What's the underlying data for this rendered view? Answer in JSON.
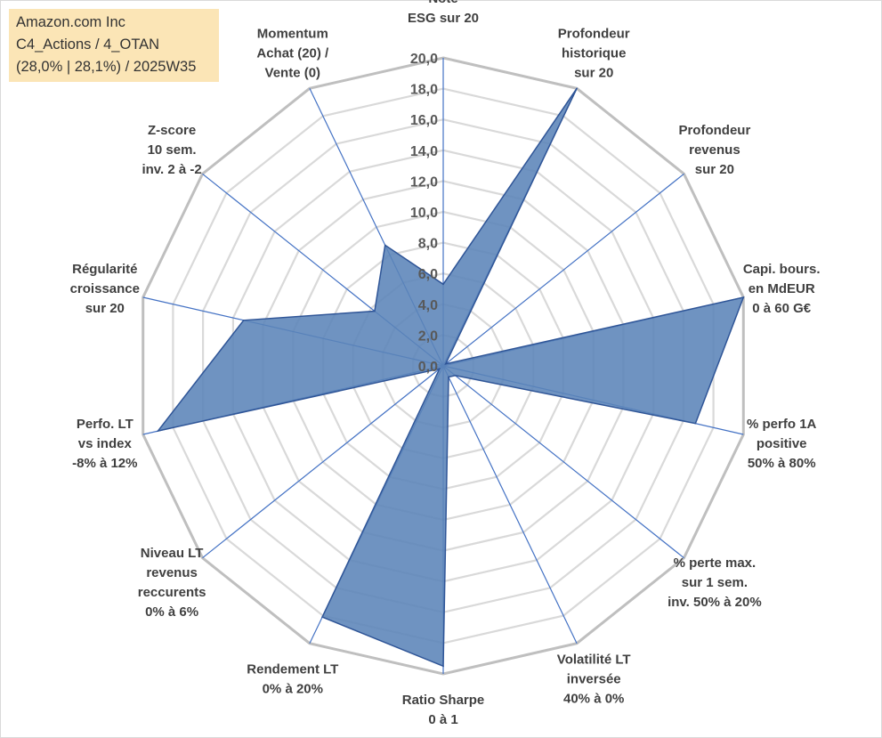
{
  "header": {
    "line1": "Amazon.com Inc",
    "line2": "C4_Actions / 4_OTAN",
    "line3": "(28,0% | 28,1%) / 2025W35"
  },
  "chart_data": {
    "type": "radar",
    "title": "",
    "rmin": 0,
    "rmax": 20,
    "tick_step": 2,
    "tick_labels": [
      "0,0",
      "2,0",
      "4,0",
      "6,0",
      "8,0",
      "10,0",
      "12,0",
      "14,0",
      "16,0",
      "18,0",
      "20,0"
    ],
    "axes": [
      [
        "Note",
        "ESG sur 20"
      ],
      [
        "Profondeur",
        "historique",
        "sur 20"
      ],
      [
        "Profondeur",
        "revenus",
        "sur 20"
      ],
      [
        "Capi. bours.",
        "en MdEUR",
        "0 à 60 G€"
      ],
      [
        "% perfo 1A",
        "positive",
        "50% à 80%"
      ],
      [
        "% perte max.",
        "sur 1 sem.",
        "inv. 50% à 20%"
      ],
      [
        "Volatilité LT",
        "inversée",
        "40% à 0%"
      ],
      [
        "Ratio Sharpe",
        "0 à 1"
      ],
      [
        "Rendement LT",
        "0% à 20%"
      ],
      [
        "Niveau LT",
        "revenus",
        "reccurents",
        "0% à 6%"
      ],
      [
        "Perfo. LT",
        "vs index",
        "-8% à 12%"
      ],
      [
        "Régularité",
        "croissance",
        "sur 20"
      ],
      [
        "Z-score",
        "10 sem.",
        "inv. 2 à -2"
      ],
      [
        "Momentum",
        "Achat (20) /",
        "Vente (0)"
      ]
    ],
    "series": [
      {
        "values": [
          5.3,
          20.0,
          0.2,
          20.0,
          16.8,
          1.0,
          0.8,
          19.5,
          18.1,
          0.3,
          19.0,
          13.3,
          5.7,
          8.7
        ]
      }
    ],
    "colors": {
      "fill": "#5b84b8",
      "stroke": "#2f5597",
      "axis": "#4472c4",
      "grid_outer": "#bfbfbf",
      "grid_inner": "#d9d9d9"
    },
    "grid": true,
    "legend": "none"
  }
}
